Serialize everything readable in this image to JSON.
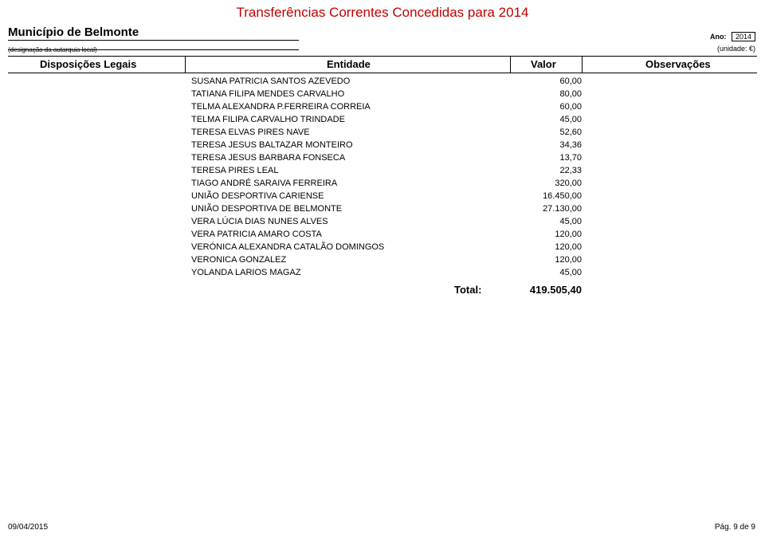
{
  "title": "Transferências Correntes Concedidas para 2014",
  "municipality": "Município de Belmonte",
  "municipality_sub": "(designação da autarquia local)",
  "ano_label": "Ano:",
  "ano_value": "2014",
  "unidade": "(unidade: €)",
  "columns": {
    "disp": "Disposições Legais",
    "entidade": "Entidade",
    "valor": "Valor",
    "obs": "Observações"
  },
  "rows": [
    {
      "entidade": "SUSANA PATRICIA SANTOS AZEVEDO",
      "valor": "60,00"
    },
    {
      "entidade": "TATIANA FILIPA MENDES CARVALHO",
      "valor": "80,00"
    },
    {
      "entidade": "TELMA ALEXANDRA P.FERREIRA CORREIA",
      "valor": "60,00"
    },
    {
      "entidade": "TELMA FILIPA CARVALHO TRINDADE",
      "valor": "45,00"
    },
    {
      "entidade": "TERESA ELVAS PIRES NAVE",
      "valor": "52,60"
    },
    {
      "entidade": "TERESA JESUS BALTAZAR MONTEIRO",
      "valor": "34,36"
    },
    {
      "entidade": "TERESA JESUS BARBARA FONSECA",
      "valor": "13,70"
    },
    {
      "entidade": "TERESA PIRES LEAL",
      "valor": "22,33"
    },
    {
      "entidade": "TIAGO ANDRÉ SARAIVA FERREIRA",
      "valor": "320,00"
    },
    {
      "entidade": "UNIÃO DESPORTIVA CARIENSE",
      "valor": "16.450,00"
    },
    {
      "entidade": "UNIÃO DESPORTIVA DE BELMONTE",
      "valor": "27.130,00"
    },
    {
      "entidade": "VERA LÚCIA DIAS NUNES ALVES",
      "valor": "45,00"
    },
    {
      "entidade": "VERA PATRICIA AMARO COSTA",
      "valor": "120,00"
    },
    {
      "entidade": "VERÓNICA ALEXANDRA CATALÃO DOMINGOS",
      "valor": "120,00"
    },
    {
      "entidade": "VERONICA GONZALEZ",
      "valor": "120,00"
    },
    {
      "entidade": "YOLANDA LARIOS MAGAZ",
      "valor": "45,00"
    }
  ],
  "total_label": "Total:",
  "total_value": "419.505,40",
  "footer_date": "09/04/2015",
  "footer_page": "Pág. 9 de 9",
  "colors": {
    "title": "#c00000",
    "text": "#000000",
    "background": "#ffffff"
  }
}
